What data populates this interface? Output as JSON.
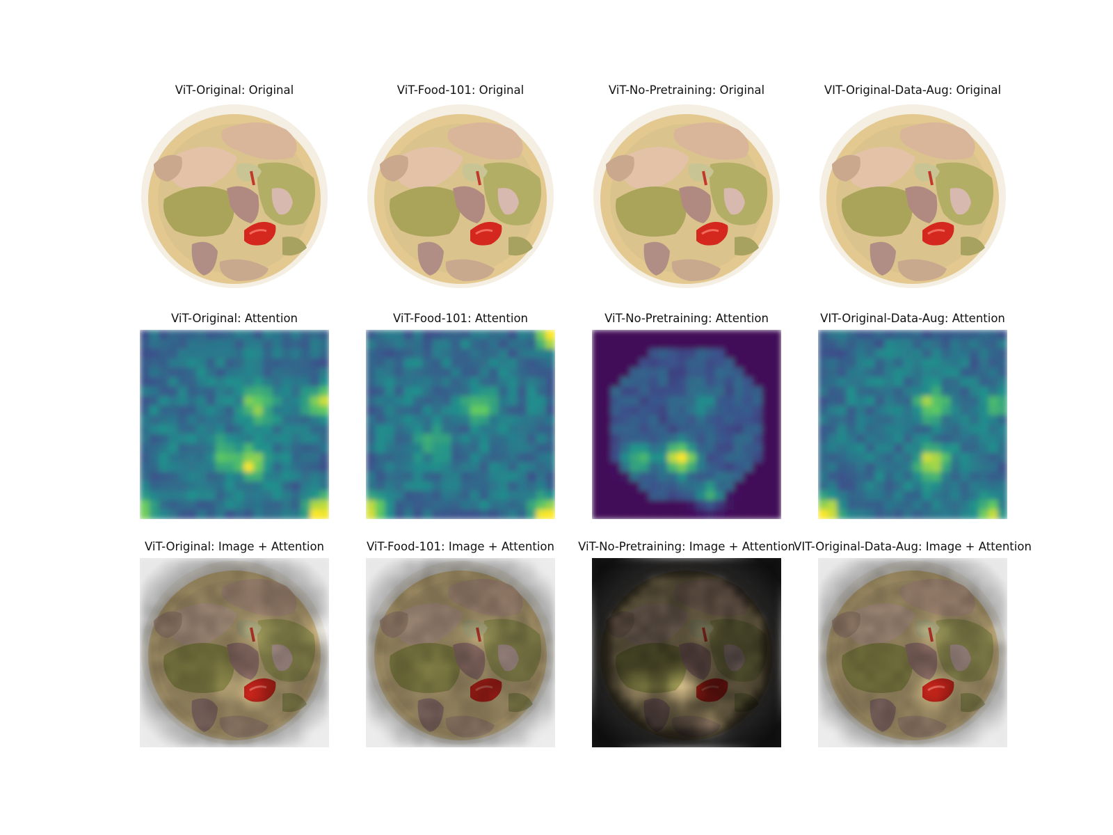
{
  "figure": {
    "rows": [
      {
        "kind": "original",
        "panels": [
          {
            "title": "ViT-Original: Original"
          },
          {
            "title": "ViT-Food-101: Original"
          },
          {
            "title": "ViT-No-Pretraining: Original"
          },
          {
            "title": "VIT-Original-Data-Aug: Original"
          }
        ]
      },
      {
        "kind": "attention",
        "panels": [
          {
            "title": "ViT-Original: Attention"
          },
          {
            "title": "ViT-Food-101: Attention"
          },
          {
            "title": "ViT-No-Pretraining: Attention"
          },
          {
            "title": "VIT-Original-Data-Aug: Attention"
          }
        ]
      },
      {
        "kind": "overlay",
        "panels": [
          {
            "title": "ViT-Original: Image + Attention"
          },
          {
            "title": "ViT-Food-101: Image + Attention"
          },
          {
            "title": "ViT-No-Pretraining: Image + Attention"
          },
          {
            "title": "VIT-Original-Data-Aug: Image + Attention"
          }
        ]
      }
    ],
    "colors": {
      "viridis_low": "#440154",
      "viridis_mid": "#21918c",
      "viridis_high": "#fde725",
      "plate": "#f4efe2",
      "broth": "#e3c98f",
      "vegetable": "#a9a45a",
      "meat": "#d9b59a",
      "mushroom": "#b08a80",
      "pepper": "#d4271d"
    }
  }
}
